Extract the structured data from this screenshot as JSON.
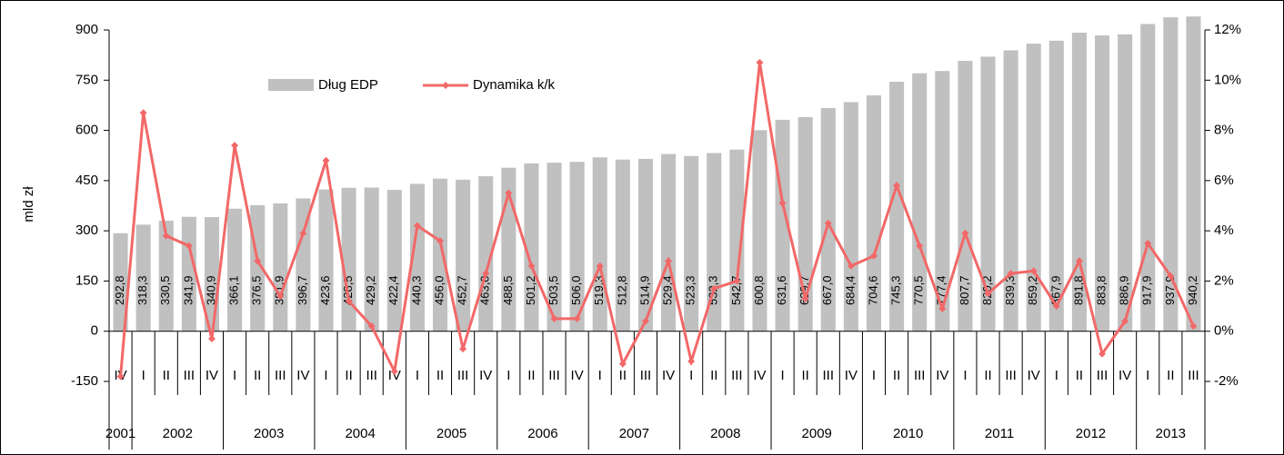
{
  "chart_data": {
    "type": "bar_line",
    "y_label": "mld zł",
    "ylim": [
      -150,
      900
    ],
    "yticks": [
      -150,
      0,
      150,
      300,
      450,
      600,
      750,
      900
    ],
    "y2lim": [
      -2,
      12
    ],
    "y2ticks": [
      {
        "value": -2,
        "label": "-2%"
      },
      {
        "value": 0,
        "label": "0%"
      },
      {
        "value": 2,
        "label": "2%"
      },
      {
        "value": 4,
        "label": "4%"
      },
      {
        "value": 6,
        "label": "6%"
      },
      {
        "value": 8,
        "label": "8%"
      },
      {
        "value": 10,
        "label": "10%"
      },
      {
        "value": 12,
        "label": "12%"
      }
    ],
    "year_groups": [
      {
        "label": "2001",
        "quarters": [
          "IV"
        ]
      },
      {
        "label": "2002",
        "quarters": [
          "I",
          "II",
          "III",
          "IV"
        ]
      },
      {
        "label": "2003",
        "quarters": [
          "I",
          "II",
          "III",
          "IV"
        ]
      },
      {
        "label": "2004",
        "quarters": [
          "I",
          "II",
          "III",
          "IV"
        ]
      },
      {
        "label": "2005",
        "quarters": [
          "I",
          "II",
          "III",
          "IV"
        ]
      },
      {
        "label": "2006",
        "quarters": [
          "I",
          "II",
          "III",
          "IV"
        ]
      },
      {
        "label": "2007",
        "quarters": [
          "I",
          "II",
          "III",
          "IV"
        ]
      },
      {
        "label": "2008",
        "quarters": [
          "I",
          "II",
          "III",
          "IV"
        ]
      },
      {
        "label": "2009",
        "quarters": [
          "I",
          "II",
          "III",
          "IV"
        ]
      },
      {
        "label": "2010",
        "quarters": [
          "I",
          "II",
          "III",
          "IV"
        ]
      },
      {
        "label": "2011",
        "quarters": [
          "I",
          "II",
          "III",
          "IV"
        ]
      },
      {
        "label": "2012",
        "quarters": [
          "I",
          "II",
          "III",
          "IV"
        ]
      },
      {
        "label": "2013",
        "quarters": [
          "I",
          "II",
          "III"
        ]
      }
    ],
    "series": [
      {
        "name": "Dług EDP",
        "type": "bar",
        "color": "#c0c0c0",
        "values": [
          292.8,
          318.3,
          330.5,
          341.9,
          340.9,
          366.1,
          376.5,
          381.9,
          396.7,
          423.6,
          428.5,
          429.2,
          422.4,
          440.3,
          456.0,
          452.7,
          463.0,
          488.5,
          501.2,
          503.5,
          506.0,
          519.3,
          512.8,
          514.9,
          529.4,
          523.3,
          532.3,
          542.7,
          600.8,
          631.6,
          639.7,
          667.0,
          684.4,
          704.6,
          745.3,
          770.5,
          777.4,
          807.7,
          820.2,
          839.3,
          859.2,
          867.9,
          891.8,
          883.8,
          886.9,
          917.9,
          937.9,
          940.2
        ],
        "value_labels": [
          "292,8",
          "318,3",
          "330,5",
          "341,9",
          "340,9",
          "366,1",
          "376,5",
          "381,9",
          "396,7",
          "423,6",
          "428,5",
          "429,2",
          "422,4",
          "440,3",
          "456,0",
          "452,7",
          "463,0",
          "488,5",
          "501,2",
          "503,5",
          "506,0",
          "519,3",
          "512,8",
          "514,9",
          "529,4",
          "523,3",
          "532,3",
          "542,7",
          "600,8",
          "631,6",
          "639,7",
          "667,0",
          "684,4",
          "704,6",
          "745,3",
          "770,5",
          "777,4",
          "807,7",
          "820,2",
          "839,3",
          "859,2",
          "867,9",
          "891,8",
          "883,8",
          "886,9",
          "917,9",
          "937,9",
          "940,2"
        ]
      },
      {
        "name": "Dynamika k/k",
        "type": "line",
        "axis": "y2",
        "color": "#f26868",
        "values": [
          -1.8,
          8.7,
          3.8,
          3.4,
          -0.3,
          7.4,
          2.8,
          1.4,
          3.9,
          6.8,
          1.2,
          0.2,
          -1.6,
          4.2,
          3.6,
          -0.7,
          2.3,
          5.5,
          2.6,
          0.5,
          0.5,
          2.6,
          -1.3,
          0.4,
          2.8,
          -1.2,
          1.7,
          2.0,
          10.7,
          5.1,
          1.3,
          4.3,
          2.6,
          3.0,
          5.8,
          3.4,
          0.9,
          3.9,
          1.5,
          2.3,
          2.4,
          1.0,
          2.8,
          -0.9,
          0.4,
          3.5,
          2.2,
          0.2
        ]
      }
    ]
  }
}
